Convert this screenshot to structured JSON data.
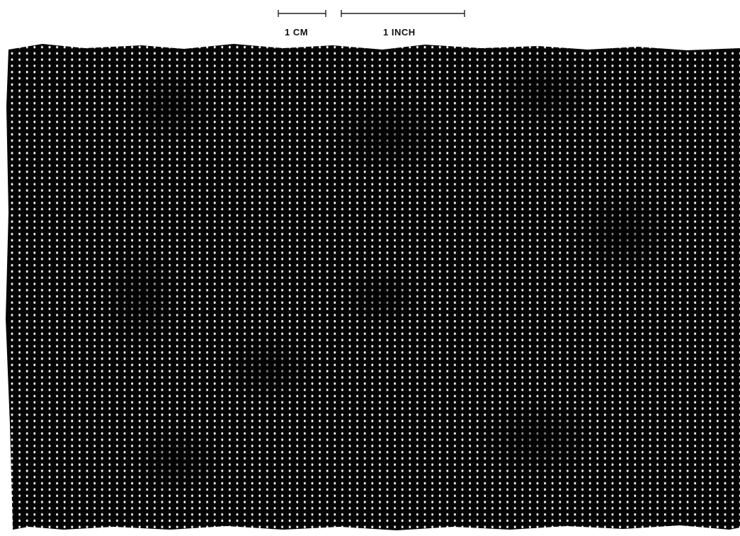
{
  "scale_bar": {
    "cm_label": "1 CM",
    "inch_label": "1 INCH"
  },
  "photo": {
    "subject": "woven-mesh-fabric-sample",
    "fabric_color": "#050505",
    "dot_color": "#ffffff",
    "background_color": "#ffffff"
  }
}
